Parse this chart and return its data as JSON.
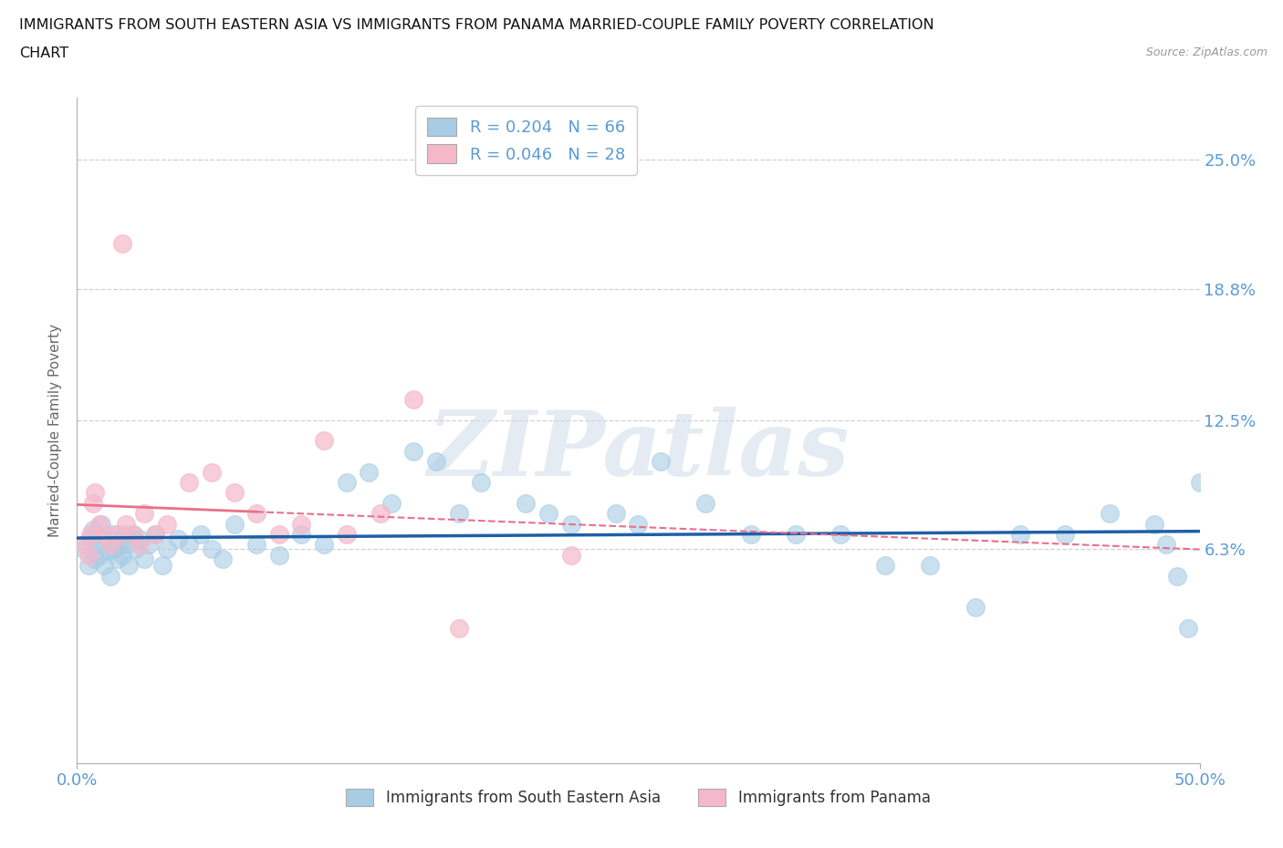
{
  "title_line1": "IMMIGRANTS FROM SOUTH EASTERN ASIA VS IMMIGRANTS FROM PANAMA MARRIED-COUPLE FAMILY POVERTY CORRELATION",
  "title_line2": "CHART",
  "source": "Source: ZipAtlas.com",
  "ylabel": "Married-Couple Family Poverty",
  "legend_label1": "Immigrants from South Eastern Asia",
  "legend_label2": "Immigrants from Panama",
  "R1_text": "R = 0.204",
  "N1_text": "N = 66",
  "R2_text": "R = 0.046",
  "N2_text": "N = 28",
  "color1": "#a8cce4",
  "color2": "#f5b8cb",
  "trendline_color1": "#1f5fa6",
  "trendline_color2": "#e8708a",
  "xlim_min": 0.0,
  "xlim_max": 50.0,
  "ylim_min": -4.0,
  "ylim_max": 28.0,
  "ytick_vals": [
    6.3,
    12.5,
    18.8,
    25.0
  ],
  "ytick_labels": [
    "6.3%",
    "12.5%",
    "18.8%",
    "25.0%"
  ],
  "xtick_vals": [
    0.0,
    50.0
  ],
  "xtick_labels": [
    "0.0%",
    "50.0%"
  ],
  "watermark": "ZIPatlas",
  "background_color": "#ffffff",
  "grid_color": "#d0d0d0",
  "tick_color": "#5b9bd5",
  "blue_x": [
    0.3,
    0.5,
    0.6,
    0.7,
    0.8,
    0.9,
    1.0,
    1.1,
    1.2,
    1.3,
    1.4,
    1.5,
    1.6,
    1.7,
    1.8,
    1.9,
    2.0,
    2.1,
    2.2,
    2.3,
    2.5,
    2.6,
    2.8,
    3.0,
    3.2,
    3.5,
    3.8,
    4.0,
    4.5,
    5.0,
    5.5,
    6.0,
    6.5,
    7.0,
    8.0,
    9.0,
    10.0,
    11.0,
    12.0,
    13.0,
    14.0,
    15.0,
    16.0,
    17.0,
    18.0,
    20.0,
    21.0,
    22.0,
    24.0,
    25.0,
    26.0,
    28.0,
    30.0,
    32.0,
    34.0,
    36.0,
    38.0,
    40.0,
    42.0,
    44.0,
    46.0,
    48.0,
    49.0,
    49.5,
    50.0,
    48.5
  ],
  "blue_y": [
    6.3,
    5.5,
    6.8,
    7.2,
    5.8,
    6.5,
    6.0,
    7.5,
    5.5,
    6.8,
    6.2,
    5.0,
    7.0,
    6.3,
    5.8,
    6.5,
    6.0,
    7.0,
    6.5,
    5.5,
    7.0,
    6.3,
    6.8,
    5.8,
    6.5,
    7.0,
    5.5,
    6.3,
    6.8,
    6.5,
    7.0,
    6.3,
    5.8,
    7.5,
    6.5,
    6.0,
    7.0,
    6.5,
    9.5,
    10.0,
    8.5,
    11.0,
    10.5,
    8.0,
    9.5,
    8.5,
    8.0,
    7.5,
    8.0,
    7.5,
    10.5,
    8.5,
    7.0,
    7.0,
    7.0,
    5.5,
    5.5,
    3.5,
    7.0,
    7.0,
    8.0,
    7.5,
    5.0,
    2.5,
    9.5,
    6.5
  ],
  "pink_x": [
    0.3,
    0.5,
    0.6,
    0.7,
    0.8,
    1.0,
    1.2,
    1.5,
    1.8,
    2.0,
    2.2,
    2.5,
    2.8,
    3.0,
    3.5,
    4.0,
    5.0,
    6.0,
    7.0,
    8.0,
    9.0,
    10.0,
    11.0,
    12.0,
    13.5,
    15.0,
    17.0,
    22.0
  ],
  "pink_y": [
    6.5,
    6.0,
    7.0,
    8.5,
    9.0,
    7.5,
    7.0,
    6.5,
    7.0,
    21.0,
    7.5,
    7.0,
    6.5,
    8.0,
    7.0,
    7.5,
    9.5,
    10.0,
    9.0,
    8.0,
    7.0,
    7.5,
    11.5,
    7.0,
    8.0,
    13.5,
    2.5,
    6.0
  ]
}
